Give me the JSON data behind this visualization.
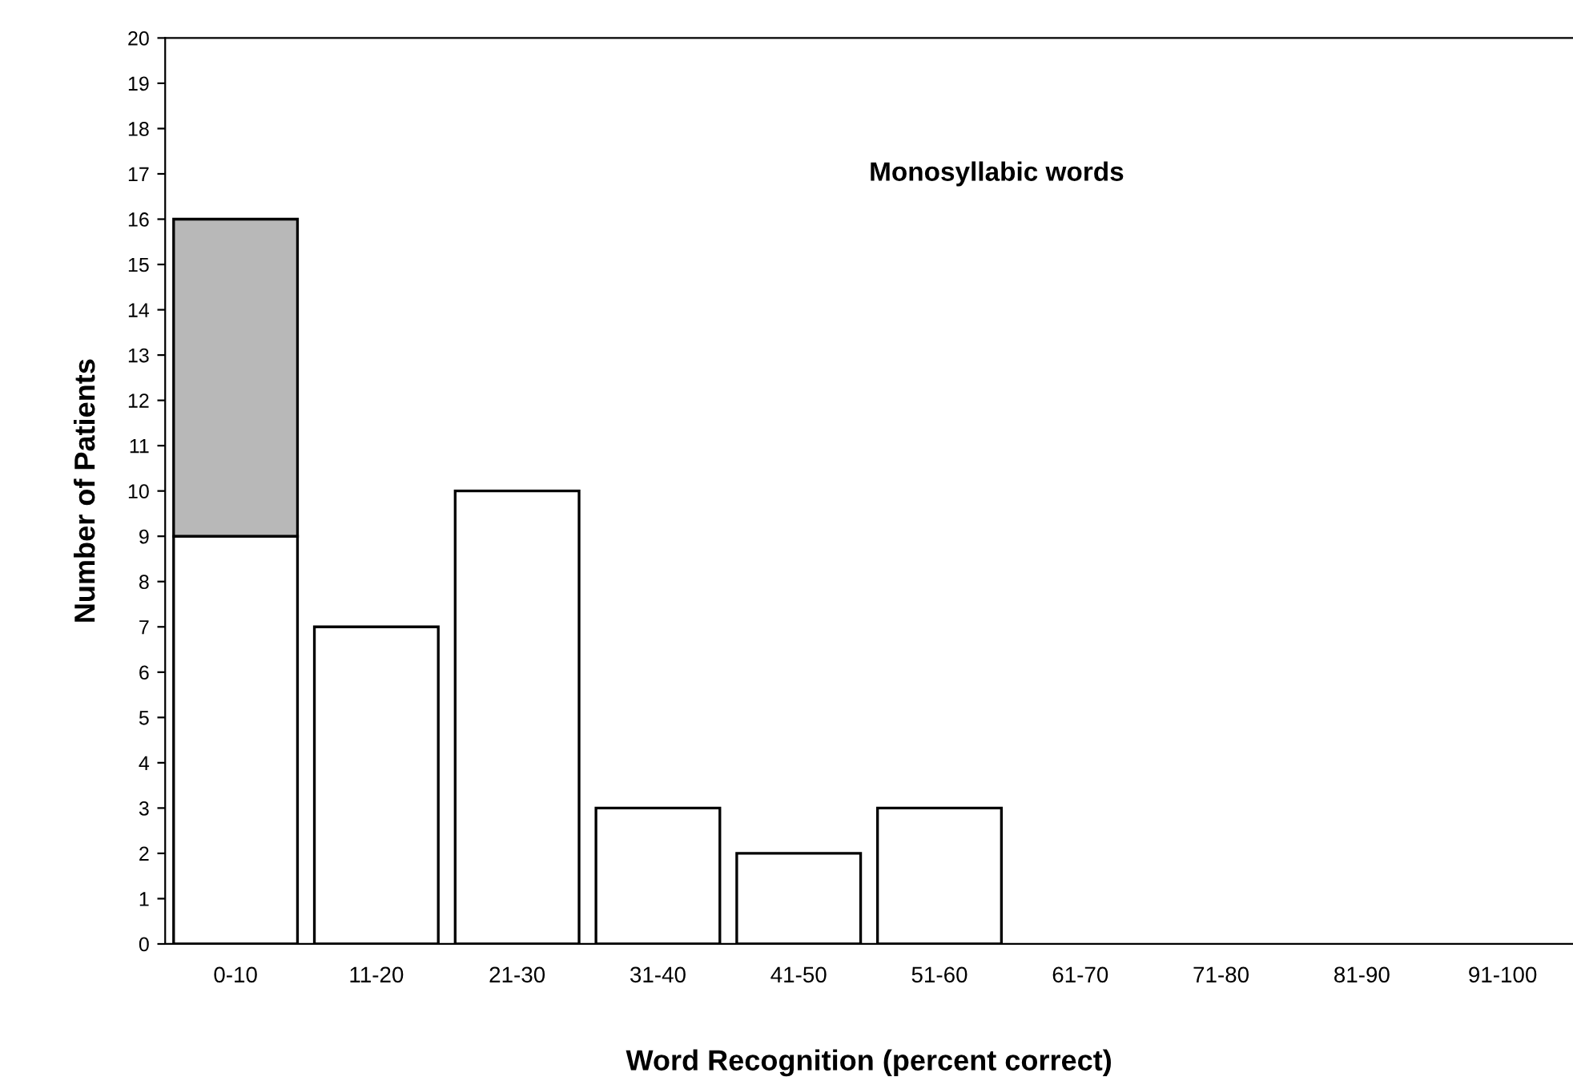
{
  "chart_data": {
    "type": "bar",
    "title": "Monosyllabic words",
    "xlabel": "Word Recognition (percent correct)",
    "ylabel": "Number of Patients",
    "categories": [
      "0-10",
      "11-20",
      "21-30",
      "31-40",
      "41-50",
      "51-60",
      "61-70",
      "71-80",
      "81-90",
      "91-100"
    ],
    "stacked": true,
    "series": [
      {
        "color": "#ffffff",
        "values": [
          9,
          7,
          10,
          3,
          2,
          3,
          0,
          0,
          0,
          0
        ]
      },
      {
        "color": "#b8b8b8",
        "values": [
          7,
          0,
          0,
          0,
          0,
          0,
          0,
          0,
          0,
          0
        ]
      }
    ],
    "ylim": [
      0,
      20
    ],
    "yticks": [
      0,
      1,
      2,
      3,
      4,
      5,
      6,
      7,
      8,
      9,
      10,
      11,
      12,
      13,
      14,
      15,
      16,
      17,
      18,
      19,
      20
    ],
    "grid": false,
    "legend": false
  }
}
